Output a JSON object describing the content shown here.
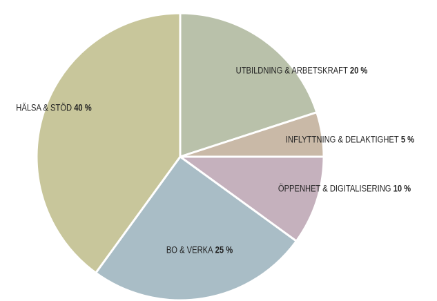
{
  "chart_data": {
    "type": "pie",
    "categories": [
      "UTBILDNING & ARBETSKRAFT",
      "INFLYTTNING & DELAKTIGHET",
      "ÖPPENHET & DIGITALISERING",
      "BO & VERKA",
      "HÄLSA & STÖD"
    ],
    "values": [
      20,
      5,
      10,
      25,
      40
    ],
    "value_labels": [
      "20 %",
      "5 %",
      "10 %",
      "25 %",
      "40 %"
    ],
    "colors": [
      "#b9c1aa",
      "#c9b9a7",
      "#c5b1bd",
      "#a9bdc6",
      "#c8c69b"
    ]
  }
}
